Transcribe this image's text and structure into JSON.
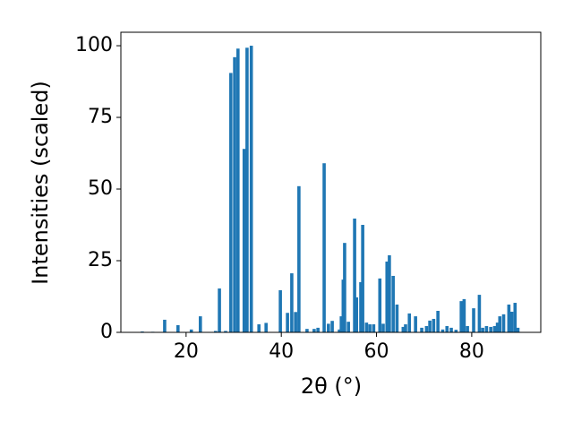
{
  "chart_data": {
    "type": "bar",
    "x_label": "2θ (°)",
    "y_label": "Intensities (scaled)",
    "x": [
      10.8,
      13,
      15.5,
      18.3,
      21.1,
      23,
      26.2,
      27,
      28.3,
      29.4,
      30.2,
      30.9,
      32.2,
      32.8,
      33.7,
      35.3,
      36.8,
      39.8,
      41.3,
      42.2,
      43,
      43.7,
      45.4,
      46.9,
      47.7,
      49,
      49.9,
      50.7,
      52.2,
      52.6,
      53,
      53.3,
      54.1,
      55.4,
      55.8,
      56.7,
      57.1,
      57.9,
      58.6,
      59.4,
      60.7,
      61.4,
      62.2,
      62.7,
      63.5,
      64.3,
      65.6,
      66.1,
      66.9,
      68.2,
      69.5,
      70.5,
      71.2,
      72,
      72.9,
      73.9,
      74.8,
      75.7,
      76.7,
      77.8,
      78.4,
      79.1,
      80.4,
      81.6,
      82.3,
      83.1,
      84,
      84.8,
      85.4,
      85.9,
      86.7,
      87.8,
      88.4,
      89.1,
      89.7
    ],
    "values": [
      0.3,
      0.2,
      4.4,
      2.5,
      1,
      5.6,
      0.5,
      15.3,
      0.5,
      90.5,
      96,
      99,
      64,
      99.3,
      100,
      2.8,
      3.3,
      14.7,
      6.8,
      20.6,
      7.1,
      51,
      1.2,
      1.2,
      1.6,
      59,
      3,
      4,
      1,
      5.6,
      18.4,
      31.2,
      3.7,
      39.7,
      12.2,
      17.5,
      37.5,
      3.4,
      2.8,
      2.8,
      18.8,
      3,
      24.7,
      26.9,
      19.7,
      9.7,
      1.9,
      2.8,
      6.6,
      5.6,
      1.6,
      2.2,
      4.1,
      4.7,
      7.5,
      1,
      2.2,
      1.6,
      0.9,
      10.9,
      11.6,
      2.2,
      8.4,
      13.1,
      1.6,
      2.2,
      1.9,
      2.2,
      3.4,
      5.6,
      6.3,
      9.7,
      7.2,
      10.3,
      1.6
    ],
    "color": "#1f77b4",
    "xlim": [
      6.3,
      94.5
    ],
    "xticks": [
      20,
      40,
      60,
      80
    ],
    "ylim": [
      0,
      104.7
    ],
    "yticks": [
      0,
      25,
      50,
      75,
      100
    ]
  }
}
